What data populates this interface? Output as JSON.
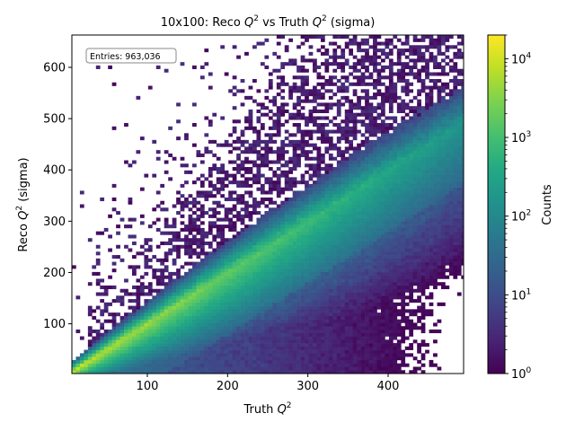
{
  "chart_data": {
    "type": "heatmap",
    "title_prefix": "10x100: Reco ",
    "title_q": "Q",
    "title_exp": "2",
    "title_mid": " vs Truth ",
    "title_suffix": " (sigma)",
    "xlabel_prefix": "Truth ",
    "xlabel_q": "Q",
    "xlabel_exp": "2",
    "ylabel_prefix": "Reco ",
    "ylabel_q": "Q",
    "ylabel_exp": "2",
    "ylabel_suffix": " (sigma)",
    "xlim": [
      6,
      494
    ],
    "ylim": [
      3,
      663
    ],
    "x_ticks": [
      100,
      200,
      300,
      400
    ],
    "x_tick_labels": [
      "100",
      "200",
      "300",
      "400"
    ],
    "y_ticks": [
      100,
      200,
      300,
      400,
      500,
      600
    ],
    "y_tick_labels": [
      "100",
      "200",
      "300",
      "400",
      "500",
      "600"
    ],
    "z_scale": "log",
    "zlim": [
      1,
      20000
    ],
    "colorbar_label": "Counts",
    "colorbar_ticks": [
      1,
      10,
      100,
      1000,
      10000
    ],
    "colorbar_tick_base": "10",
    "colorbar_tick_exps": [
      "0",
      "1",
      "2",
      "3",
      "4"
    ],
    "colormap": "viridis",
    "entries_text": "Entries: 963,036",
    "distribution_note": "counts concentrated along diagonal reco≈truth, peak ~2e4 near origin, tail toward reco>truth"
  },
  "colors": {
    "viridis_low": "#440154",
    "viridis_mid": "#21918c",
    "viridis_high": "#fde725"
  }
}
